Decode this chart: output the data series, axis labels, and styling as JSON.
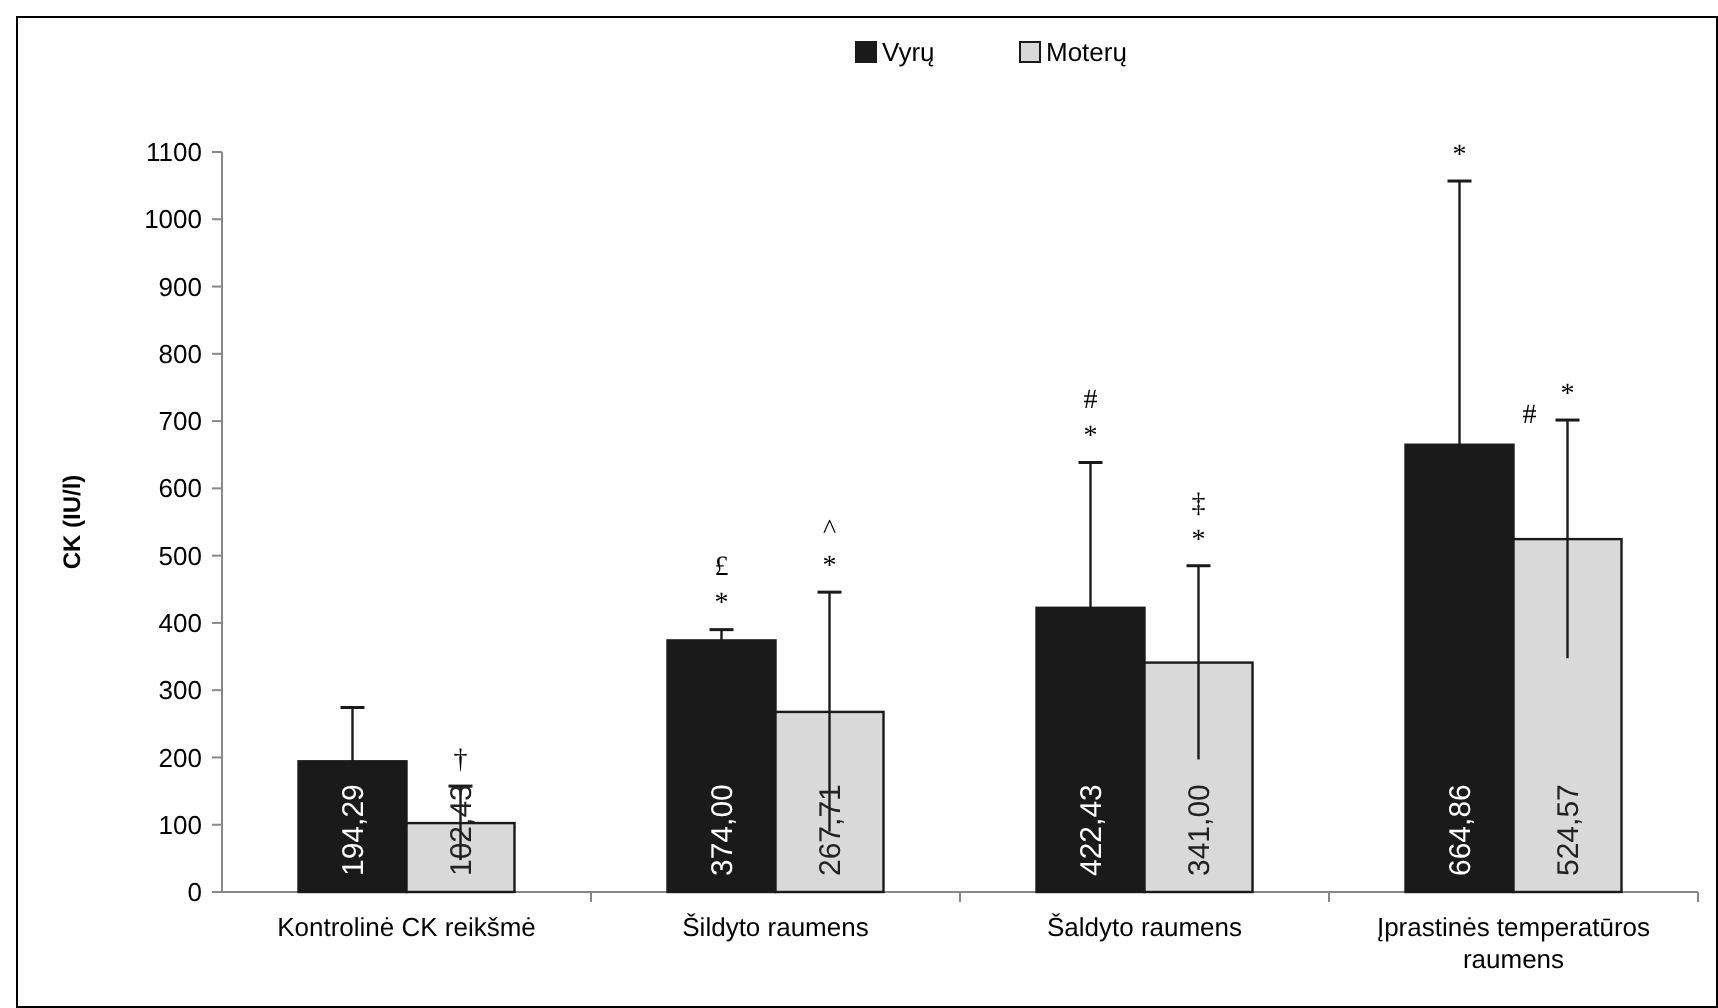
{
  "chart_data": {
    "type": "bar",
    "ylabel": "CK (IU/l)",
    "categories": [
      "Kontrolinė CK reikšmė",
      "Šildyto raumens",
      "Šaldyto raumens",
      "Įprastinės temperatūros raumens"
    ],
    "series": [
      {
        "name": "Vyrų",
        "color": "#1a1a1a",
        "values": [
          194.29,
          374.0,
          422.43,
          664.86
        ],
        "errors": [
          80,
          16,
          216,
          392
        ],
        "value_labels": [
          "194,29",
          "374,00",
          "422,43",
          "664,86"
        ]
      },
      {
        "name": "Moterų",
        "color": "#d9d9d9",
        "values": [
          102.43,
          267.71,
          341.0,
          524.57
        ],
        "errors": [
          55,
          178,
          144,
          177
        ],
        "value_labels": [
          "102,43",
          "267,71",
          "341,00",
          "524,57"
        ]
      }
    ],
    "ylim": [
      0,
      1100
    ],
    "yticks": [
      0,
      100,
      200,
      300,
      400,
      500,
      600,
      700,
      800,
      900,
      1000,
      1100
    ],
    "grid": false,
    "legend": "top",
    "annotations": [
      "†",
      "*",
      "£",
      "*",
      "^",
      "*",
      "#",
      "*",
      "‡",
      "*",
      "#",
      "*"
    ]
  }
}
